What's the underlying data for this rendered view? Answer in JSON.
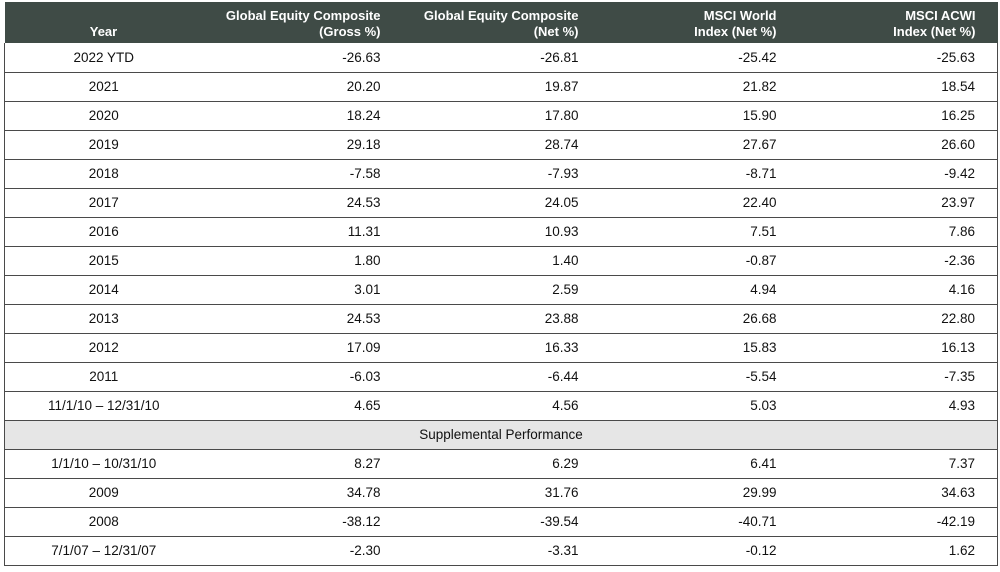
{
  "headers": [
    {
      "line1": "",
      "line2": "Year"
    },
    {
      "line1": "Global Equity Composite",
      "line2": "(Gross %)"
    },
    {
      "line1": "Global Equity Composite",
      "line2": "(Net %)"
    },
    {
      "line1": "MSCI World",
      "line2": "Index (Net %)"
    },
    {
      "line1": "MSCI ACWI",
      "line2": "Index (Net %)"
    }
  ],
  "rows": [
    [
      "2022 YTD",
      "-26.63",
      "-26.81",
      "-25.42",
      "-25.63"
    ],
    [
      "2021",
      "20.20",
      "19.87",
      "21.82",
      "18.54"
    ],
    [
      "2020",
      "18.24",
      "17.80",
      "15.90",
      "16.25"
    ],
    [
      "2019",
      "29.18",
      "28.74",
      "27.67",
      "26.60"
    ],
    [
      "2018",
      "-7.58",
      "-7.93",
      "-8.71",
      "-9.42"
    ],
    [
      "2017",
      "24.53",
      "24.05",
      "22.40",
      "23.97"
    ],
    [
      "2016",
      "11.31",
      "10.93",
      "7.51",
      "7.86"
    ],
    [
      "2015",
      "1.80",
      "1.40",
      "-0.87",
      "-2.36"
    ],
    [
      "2014",
      "3.01",
      "2.59",
      "4.94",
      "4.16"
    ],
    [
      "2013",
      "24.53",
      "23.88",
      "26.68",
      "22.80"
    ],
    [
      "2012",
      "17.09",
      "16.33",
      "15.83",
      "16.13"
    ],
    [
      "2011",
      "-6.03",
      "-6.44",
      "-5.54",
      "-7.35"
    ],
    [
      "11/1/10 – 12/31/10",
      "4.65",
      "4.56",
      "5.03",
      "4.93"
    ]
  ],
  "section_label": "Supplemental Performance",
  "supplemental_rows": [
    [
      "1/1/10 – 10/31/10",
      "8.27",
      "6.29",
      "6.41",
      "7.37"
    ],
    [
      "2009",
      "34.78",
      "31.76",
      "29.99",
      "34.63"
    ],
    [
      "2008",
      "-38.12",
      "-39.54",
      "-40.71",
      "-42.19"
    ],
    [
      "7/1/07 – 12/31/07",
      "-2.30",
      "-3.31",
      "-0.12",
      "1.62"
    ]
  ],
  "colors": {
    "header_bg": "#3f4b46",
    "header_text": "#ffffff",
    "section_bg": "#e6e6e6"
  }
}
